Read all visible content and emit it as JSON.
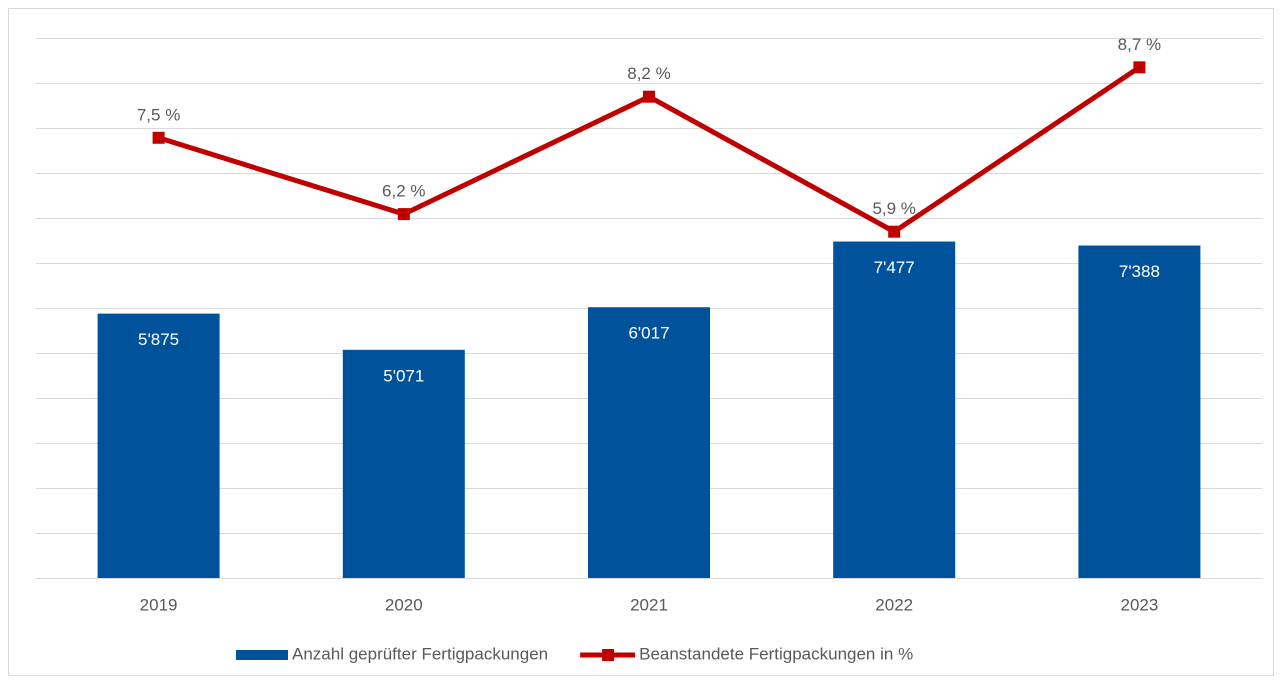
{
  "chart_data": {
    "type": "bar_line",
    "categories": [
      "2019",
      "2020",
      "2021",
      "2022",
      "2023"
    ],
    "series": [
      {
        "name": "Anzahl geprüfter Fertigpackungen",
        "type": "bar",
        "color": "#00539b",
        "values": [
          5875,
          5071,
          6017,
          7477,
          7388
        ],
        "value_labels": [
          "5'875",
          "5'071",
          "6'017",
          "7'477",
          "7'388"
        ]
      },
      {
        "name": "Beanstandete Fertigpackungen in %",
        "type": "line",
        "axis": "y2",
        "color": "#c00000",
        "values": [
          7.5,
          6.2,
          8.2,
          5.9,
          8.7
        ],
        "value_labels": [
          "7,5 %",
          "6,2 %",
          "8,2 %",
          "5,9 %",
          "8,7 %"
        ]
      }
    ],
    "ylim": [
      0,
      12000
    ],
    "yticks": [
      0,
      1000,
      2000,
      3000,
      4000,
      5000,
      6000,
      7000,
      8000,
      9000,
      10000,
      11000,
      12000
    ],
    "y2lim": [
      0,
      9.2
    ],
    "grid": true,
    "legend": "bottom"
  }
}
